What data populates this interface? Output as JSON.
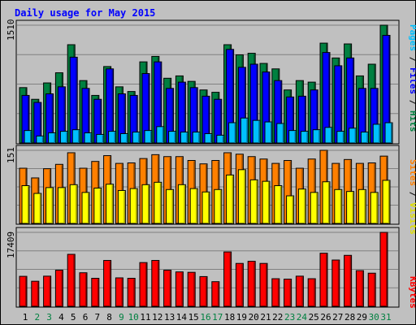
{
  "chart_data": {
    "type": "bar",
    "title": "Daily usage for May 2015",
    "days": [
      "1",
      "2",
      "3",
      "4",
      "5",
      "6",
      "7",
      "8",
      "9",
      "10",
      "11",
      "12",
      "13",
      "14",
      "15",
      "16",
      "17",
      "18",
      "19",
      "20",
      "21",
      "22",
      "23",
      "24",
      "25",
      "26",
      "27",
      "28",
      "29",
      "30",
      "31"
    ],
    "weekend_days": [
      "2",
      "3",
      "9",
      "10",
      "16",
      "17",
      "23",
      "24",
      "30",
      "31"
    ],
    "top_panel": {
      "ymax_label": "1510",
      "ymax": 1510,
      "ylabel_parts": [
        "Pages",
        " / ",
        "Files",
        " / ",
        "Hits"
      ],
      "series": [
        {
          "name": "Hits",
          "color": "#008040",
          "values": [
            710,
            560,
            770,
            900,
            1260,
            800,
            610,
            980,
            720,
            660,
            1040,
            1110,
            830,
            860,
            790,
            680,
            650,
            1260,
            1130,
            1150,
            1020,
            950,
            680,
            800,
            780,
            1280,
            1090,
            1270,
            860,
            1010,
            1510
          ]
        },
        {
          "name": "Files",
          "color": "#0000ff",
          "values": [
            610,
            520,
            630,
            720,
            1100,
            700,
            560,
            950,
            630,
            610,
            890,
            1040,
            700,
            780,
            710,
            600,
            560,
            1200,
            970,
            1010,
            910,
            800,
            590,
            600,
            680,
            1160,
            990,
            1090,
            700,
            700,
            1380
          ]
        },
        {
          "name": "Pages",
          "color": "#00c0ff",
          "values": [
            160,
            90,
            130,
            150,
            170,
            130,
            110,
            150,
            120,
            140,
            160,
            210,
            150,
            140,
            140,
            120,
            100,
            260,
            320,
            290,
            270,
            250,
            160,
            150,
            170,
            200,
            150,
            190,
            140,
            240,
            260
          ]
        }
      ]
    },
    "middle_panel": {
      "ymax_label": "151",
      "ymax": 151,
      "ylabel_parts": [
        "Sites",
        " / ",
        "Visits"
      ],
      "series": [
        {
          "name": "Visits",
          "color": "#ff8000",
          "values": [
            114,
            94,
            113,
            122,
            146,
            114,
            128,
            140,
            124,
            125,
            134,
            142,
            138,
            138,
            130,
            123,
            130,
            146,
            143,
            138,
            133,
            124,
            130,
            114,
            133,
            151,
            124,
            132,
            124,
            125,
            139
          ]
        },
        {
          "name": "Sites",
          "color": "#ffff00",
          "values": [
            78,
            62,
            74,
            74,
            80,
            64,
            73,
            81,
            68,
            72,
            80,
            85,
            70,
            80,
            72,
            65,
            70,
            100,
            111,
            90,
            87,
            78,
            57,
            71,
            64,
            86,
            70,
            66,
            70,
            64,
            89
          ]
        }
      ]
    },
    "bottom_panel": {
      "ymax_label": "17409",
      "ymax": 17409,
      "ylabel_parts": [
        "KBytes"
      ],
      "series": [
        {
          "name": "KBytes",
          "color": "#ff0000",
          "values": [
            7060,
            5900,
            7100,
            8500,
            12240,
            7900,
            6600,
            10800,
            6700,
            6600,
            10300,
            10800,
            8500,
            8100,
            8000,
            7000,
            5800,
            12800,
            10100,
            10600,
            10100,
            6500,
            6400,
            7100,
            6500,
            12500,
            10900,
            12000,
            8400,
            7800,
            17409
          ]
        }
      ]
    }
  }
}
